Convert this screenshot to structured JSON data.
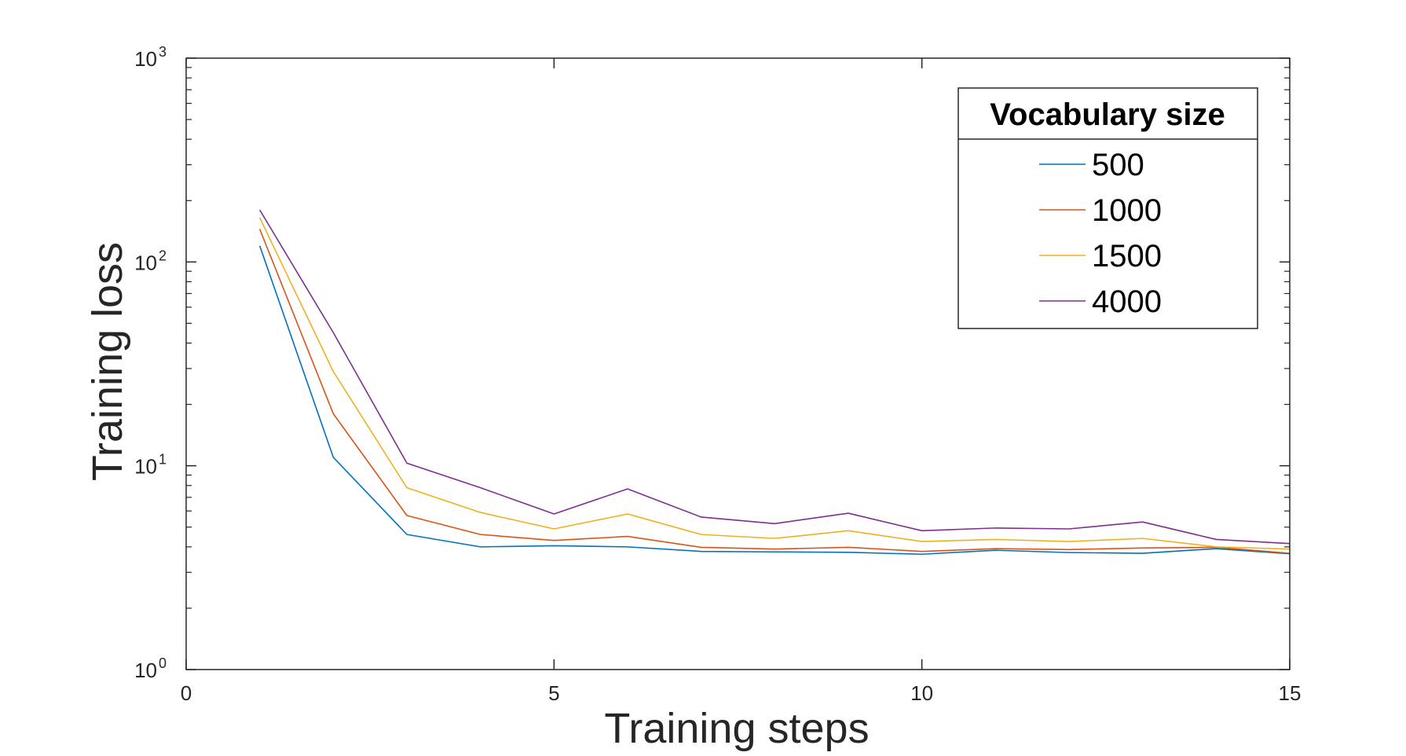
{
  "chart_data": {
    "type": "line",
    "title": "",
    "xlabel": "Training steps",
    "ylabel": "Training loss",
    "xlim": [
      0,
      15
    ],
    "ylim": [
      1,
      1000
    ],
    "yscale": "log",
    "grid": false,
    "legend_position": "top-right",
    "x_ticks": [
      "0",
      "5",
      "10",
      "15"
    ],
    "y_ticks": [
      {
        "base": "10",
        "exp": "0"
      },
      {
        "base": "10",
        "exp": "1"
      },
      {
        "base": "10",
        "exp": "2"
      },
      {
        "base": "10",
        "exp": "3"
      }
    ],
    "legend_title": "Vocabulary size",
    "x": [
      1,
      2,
      3,
      4,
      5,
      6,
      7,
      8,
      9,
      10,
      11,
      12,
      13,
      14,
      15
    ],
    "series": [
      {
        "name": "500",
        "color": "#0072BD",
        "values": [
          120,
          11,
          4.6,
          4.0,
          4.05,
          4.0,
          3.8,
          3.78,
          3.76,
          3.68,
          3.85,
          3.75,
          3.72,
          3.92,
          3.7
        ]
      },
      {
        "name": "1000",
        "color": "#D95319",
        "values": [
          145,
          18,
          5.7,
          4.6,
          4.3,
          4.5,
          3.98,
          3.9,
          3.98,
          3.8,
          3.92,
          3.88,
          3.95,
          3.98,
          3.72
        ]
      },
      {
        "name": "1500",
        "color": "#EDB120",
        "values": [
          165,
          29,
          7.8,
          5.9,
          4.9,
          5.8,
          4.6,
          4.4,
          4.8,
          4.25,
          4.35,
          4.25,
          4.4,
          4.0,
          3.9
        ]
      },
      {
        "name": "4000",
        "color": "#7E2F8E",
        "values": [
          180,
          45,
          10.3,
          7.8,
          5.8,
          7.7,
          5.6,
          5.2,
          5.85,
          4.8,
          4.95,
          4.9,
          5.3,
          4.35,
          4.15
        ]
      }
    ]
  }
}
